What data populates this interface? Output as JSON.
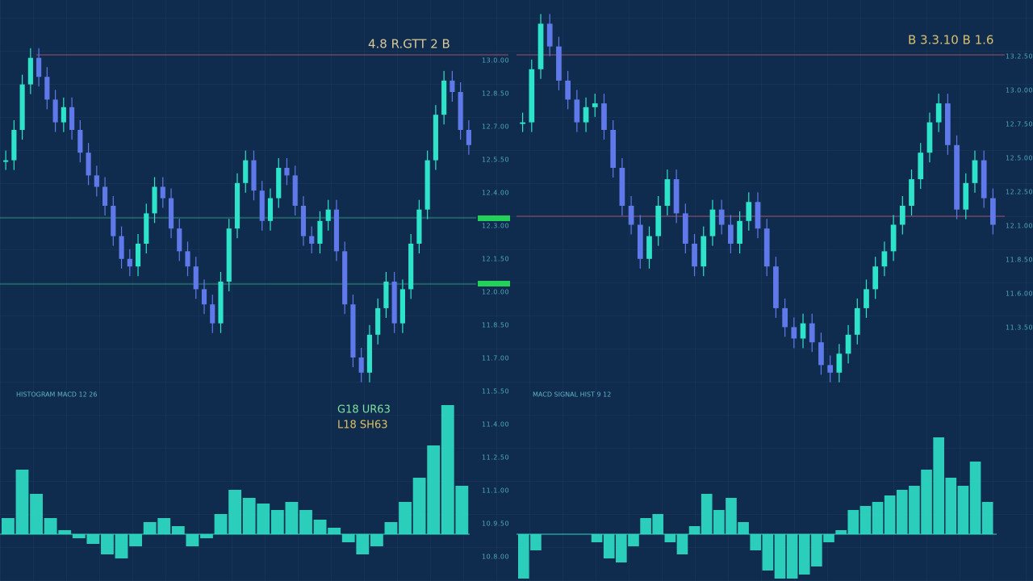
{
  "header": {
    "left_title": "4.8 R.GTT 2 B",
    "right_title": "B 3.3.10 B 1.6",
    "indicator_1": "G18 UR63",
    "indicator_2": "L18 SH63"
  },
  "middle_axis": [
    "13.0.00",
    "12.8.50",
    "12.7.00",
    "12.5.50",
    "12.4.00",
    "12.3.00",
    "12.1.50",
    "12.0.00",
    "11.8.50",
    "11.7.00",
    "11.5.50",
    "11.4.00",
    "11.2.50",
    "11.1.00",
    "10.9.50",
    "10.8.00"
  ],
  "right_axis": [
    "13.2.50",
    "13.0.00",
    "12.7.50",
    "12.5.00",
    "12.2.50",
    "12.1.00",
    "11.8.50",
    "11.6.00",
    "11.3.50"
  ],
  "panels": [
    {
      "label": "HISTOGRAM MACD 12 26",
      "closes": [
        62,
        70,
        82,
        89,
        84,
        78,
        72,
        76,
        70,
        64,
        58,
        55,
        50,
        42,
        36,
        34,
        40,
        48,
        55,
        52,
        44,
        38,
        34,
        28,
        24,
        19,
        30,
        44,
        56,
        62,
        54,
        46,
        52,
        60,
        58,
        50,
        42,
        40,
        46,
        49,
        38,
        24,
        10,
        6,
        16,
        23,
        30,
        19,
        28,
        40,
        49,
        62,
        74,
        83,
        80,
        70,
        66
      ],
      "histogram": [
        20,
        80,
        50,
        20,
        5,
        -5,
        -12,
        -25,
        -30,
        -15,
        15,
        20,
        10,
        -15,
        -5,
        25,
        55,
        45,
        38,
        30,
        40,
        30,
        18,
        8,
        -10,
        -25,
        -15,
        15,
        40,
        70,
        110,
        160,
        60
      ]
    },
    {
      "label": "MACD SIGNAL HIST 9 12",
      "closes": [
        72,
        86,
        98,
        92,
        83,
        78,
        72,
        76,
        77,
        70,
        60,
        50,
        45,
        36,
        42,
        50,
        57,
        48,
        40,
        34,
        42,
        49,
        45,
        40,
        46,
        51,
        44,
        34,
        23,
        18,
        15,
        19,
        14,
        8,
        6,
        11,
        16,
        23,
        28,
        34,
        38,
        45,
        50,
        57,
        64,
        72,
        77,
        66,
        49,
        56,
        62,
        52,
        45
      ],
      "histogram": [
        -55,
        -20,
        0,
        0,
        0,
        0,
        -10,
        -30,
        -35,
        -15,
        20,
        25,
        -10,
        -25,
        10,
        50,
        30,
        45,
        15,
        -20,
        -45,
        -55,
        -55,
        -50,
        -40,
        -10,
        5,
        30,
        35,
        40,
        48,
        55,
        60,
        80,
        120,
        70,
        60,
        90,
        40
      ]
    }
  ]
}
